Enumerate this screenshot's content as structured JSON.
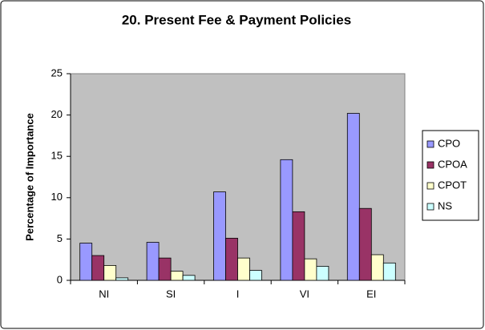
{
  "chart_data": {
    "type": "bar",
    "title": "20.  Present Fee & Payment Policies",
    "y_label": "Percentage of Importance",
    "categories": [
      "NI",
      "SI",
      "I",
      "VI",
      "EI"
    ],
    "series": [
      {
        "name": "CPO",
        "color": "#9999ff",
        "values": [
          4.5,
          4.6,
          10.7,
          14.6,
          20.2
        ]
      },
      {
        "name": "CPOA",
        "color": "#993366",
        "values": [
          3.0,
          2.7,
          5.1,
          8.3,
          8.7
        ]
      },
      {
        "name": "CPOT",
        "color": "#ffffcc",
        "values": [
          1.8,
          1.1,
          2.7,
          2.6,
          3.1
        ]
      },
      {
        "name": "NS",
        "color": "#ccffff",
        "values": [
          0.3,
          0.6,
          1.2,
          1.7,
          2.1
        ]
      }
    ],
    "ylim": [
      0,
      25
    ],
    "yticks": [
      0,
      5,
      10,
      15,
      20,
      25
    ],
    "grid": false,
    "legend": "right"
  }
}
